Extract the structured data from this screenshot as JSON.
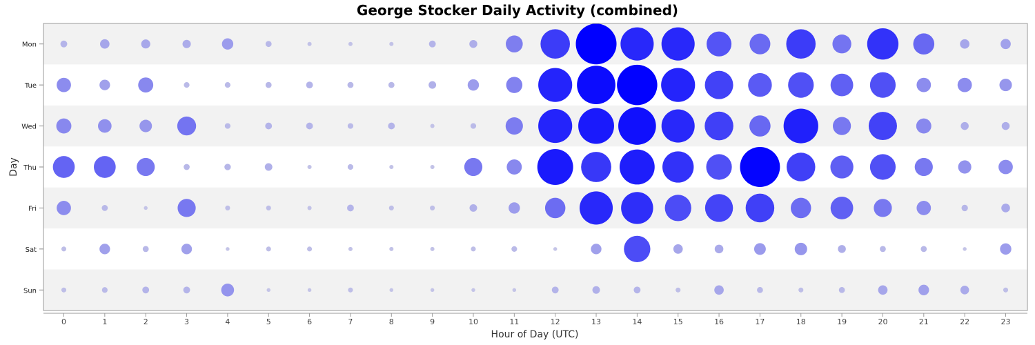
{
  "chart_data": {
    "type": "scatter",
    "title": "George Stocker Daily Activity (combined)",
    "xlabel": "Hour of Day (UTC)",
    "ylabel": "Day",
    "x_ticks": [
      "0",
      "1",
      "2",
      "3",
      "4",
      "5",
      "6",
      "7",
      "8",
      "9",
      "10",
      "11",
      "12",
      "13",
      "14",
      "15",
      "16",
      "17",
      "18",
      "19",
      "20",
      "21",
      "22",
      "23"
    ],
    "days": [
      "Mon",
      "Tue",
      "Wed",
      "Thu",
      "Fri",
      "Sat",
      "Sun"
    ],
    "max_value": 1.0,
    "values": [
      [
        0.1,
        0.17,
        0.16,
        0.14,
        0.22,
        0.08,
        0.03,
        0.03,
        0.03,
        0.1,
        0.13,
        0.37,
        0.7,
        1.0,
        0.8,
        0.8,
        0.58,
        0.47,
        0.7,
        0.42,
        0.75,
        0.48,
        0.17,
        0.19
      ],
      [
        0.3,
        0.2,
        0.32,
        0.07,
        0.07,
        0.08,
        0.1,
        0.08,
        0.08,
        0.12,
        0.22,
        0.35,
        0.82,
        0.94,
        0.99,
        0.82,
        0.67,
        0.55,
        0.6,
        0.52,
        0.6,
        0.3,
        0.3,
        0.25
      ],
      [
        0.32,
        0.28,
        0.25,
        0.42,
        0.07,
        0.1,
        0.1,
        0.07,
        0.1,
        0.03,
        0.07,
        0.38,
        0.82,
        0.87,
        0.92,
        0.8,
        0.68,
        0.48,
        0.84,
        0.4,
        0.67,
        0.32,
        0.13,
        0.13
      ],
      [
        0.5,
        0.5,
        0.4,
        0.08,
        0.09,
        0.12,
        0.03,
        0.07,
        0.03,
        0.03,
        0.4,
        0.32,
        0.87,
        0.72,
        0.85,
        0.75,
        0.6,
        0.98,
        0.68,
        0.53,
        0.6,
        0.4,
        0.27,
        0.3
      ],
      [
        0.3,
        0.08,
        0.02,
        0.4,
        0.05,
        0.05,
        0.03,
        0.1,
        0.05,
        0.05,
        0.12,
        0.22,
        0.46,
        0.8,
        0.77,
        0.62,
        0.66,
        0.68,
        0.46,
        0.52,
        0.4,
        0.3,
        0.09,
        0.15
      ],
      [
        0.05,
        0.2,
        0.08,
        0.2,
        0.02,
        0.05,
        0.05,
        0.03,
        0.03,
        0.03,
        0.05,
        0.07,
        0.02,
        0.2,
        0.62,
        0.17,
        0.15,
        0.23,
        0.25,
        0.13,
        0.08,
        0.08,
        0.02,
        0.22
      ],
      [
        0.05,
        0.07,
        0.1,
        0.1,
        0.26,
        0.02,
        0.02,
        0.05,
        0.02,
        0.02,
        0.02,
        0.02,
        0.1,
        0.12,
        0.1,
        0.05,
        0.17,
        0.08,
        0.05,
        0.08,
        0.17,
        0.2,
        0.15,
        0.05
      ]
    ],
    "band_colors": [
      "#f2f2f2",
      "#ffffff"
    ],
    "bubble_color_low": "#c8c8e6",
    "bubble_color_high": "#0000ff",
    "grid": false,
    "legend": "none"
  }
}
